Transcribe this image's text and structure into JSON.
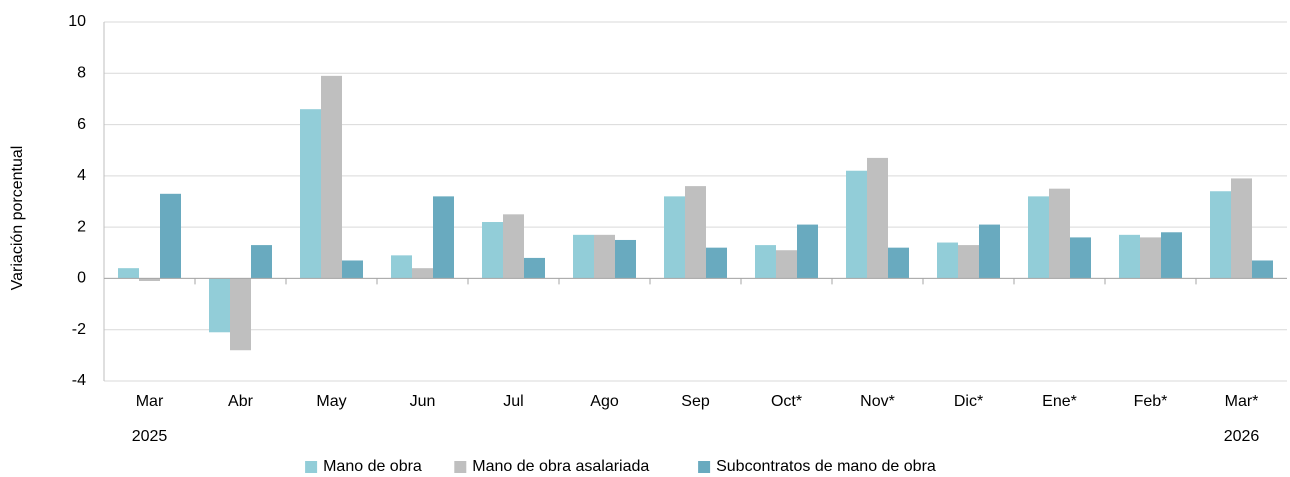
{
  "chart_data": {
    "type": "bar",
    "y_axis_label": "Variación porcentual",
    "categories": [
      "Mar",
      "Abr",
      "May",
      "Jun",
      "Jul",
      "Ago",
      "Sep",
      "Oct*",
      "Nov*",
      "Dic*",
      "Ene*",
      "Feb*",
      "Mar*"
    ],
    "x_group_labels": [
      "2025",
      null,
      null,
      null,
      null,
      null,
      null,
      null,
      null,
      null,
      null,
      null,
      "2026"
    ],
    "series": [
      {
        "name": "Mano de obra",
        "color": "#92cdd8",
        "values": [
          0.4,
          -2.1,
          6.6,
          0.9,
          2.2,
          1.7,
          3.2,
          1.3,
          4.2,
          1.4,
          3.2,
          1.7,
          3.4
        ]
      },
      {
        "name": "Mano de obra asalariada",
        "color": "#bfbfbf",
        "values": [
          -0.1,
          -2.8,
          7.9,
          0.4,
          2.5,
          1.7,
          3.6,
          1.1,
          4.7,
          1.3,
          3.5,
          1.6,
          3.9
        ]
      },
      {
        "name": "Subcontratos de mano de obra",
        "color": "#69aabf",
        "values": [
          3.3,
          1.3,
          0.7,
          3.2,
          0.8,
          1.5,
          1.2,
          2.1,
          1.2,
          2.1,
          1.6,
          1.8,
          0.7
        ]
      }
    ],
    "ylim": [
      -4,
      10
    ],
    "yticks": [
      -4,
      -2,
      0,
      2,
      4,
      6,
      8,
      10
    ],
    "grid": true,
    "legend": "bottom"
  }
}
